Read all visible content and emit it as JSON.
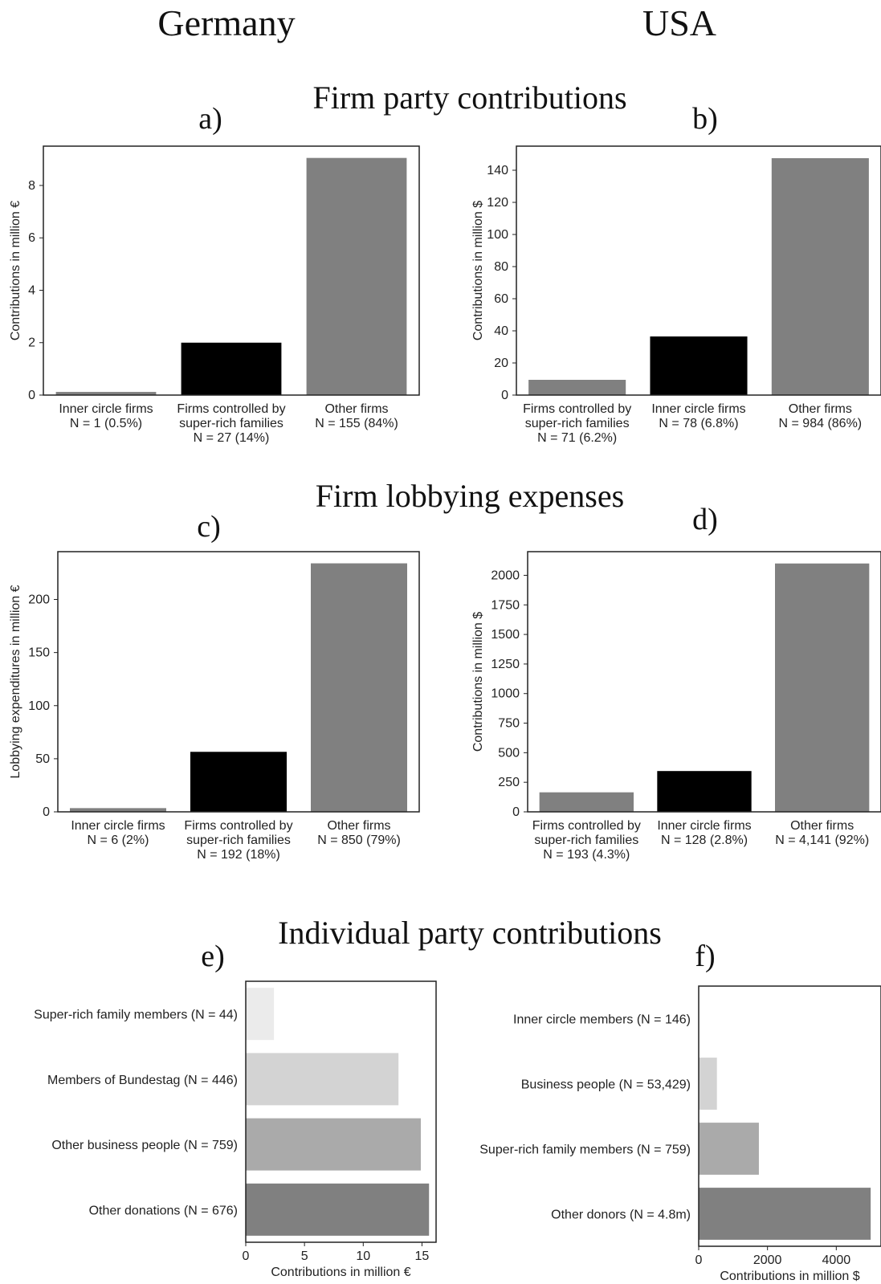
{
  "headers": {
    "germany": "Germany",
    "usa": "USA",
    "section_firm_contributions": "Firm party contributions",
    "section_lobbying": "Firm lobbying expenses",
    "section_individual": "Individual party contributions"
  },
  "colors": {
    "black": "#000000",
    "dark_gray": "#808080",
    "mid_gray": "#aaaaaa",
    "light_gray": "#d3d3d3",
    "very_light_gray": "#ebebeb"
  },
  "chart_data": [
    {
      "id": "a",
      "panel_label": "a)",
      "type": "bar",
      "orientation": "vertical",
      "ylabel": "Contributions in million €",
      "ylim": [
        0,
        9.5
      ],
      "yticks": [
        0,
        2,
        4,
        6,
        8
      ],
      "categories": [
        [
          "Inner circle firms",
          "N = 1 (0.5%)"
        ],
        [
          "Firms controlled by",
          "super-rich families",
          "N = 27 (14%)"
        ],
        [
          "Other firms",
          "N = 155 (84%)"
        ]
      ],
      "values": [
        0.12,
        2.0,
        9.05
      ],
      "colors": [
        "#808080",
        "#000000",
        "#808080"
      ]
    },
    {
      "id": "b",
      "panel_label": "b)",
      "type": "bar",
      "orientation": "vertical",
      "ylabel": "Contributions in million $",
      "ylim": [
        0,
        155
      ],
      "yticks": [
        0,
        20,
        40,
        60,
        80,
        100,
        120,
        140
      ],
      "categories": [
        [
          "Firms controlled by",
          "super-rich families",
          "N = 71 (6.2%)"
        ],
        [
          "Inner circle firms",
          "N = 78 (6.8%)"
        ],
        [
          "Other firms",
          "N = 984 (86%)"
        ]
      ],
      "values": [
        9.5,
        36.5,
        147.5
      ],
      "colors": [
        "#808080",
        "#000000",
        "#808080"
      ]
    },
    {
      "id": "c",
      "panel_label": "c)",
      "type": "bar",
      "orientation": "vertical",
      "ylabel": "Lobbying expenditures in million €",
      "ylim": [
        0,
        245
      ],
      "yticks": [
        0,
        50,
        100,
        150,
        200
      ],
      "categories": [
        [
          "Inner circle firms",
          "N = 6 (2%)"
        ],
        [
          "Firms controlled by",
          "super-rich families",
          "N = 192 (18%)"
        ],
        [
          "Other firms",
          "N = 850 (79%)"
        ]
      ],
      "values": [
        3.5,
        56.5,
        234
      ],
      "colors": [
        "#808080",
        "#000000",
        "#808080"
      ]
    },
    {
      "id": "d",
      "panel_label": "d)",
      "type": "bar",
      "orientation": "vertical",
      "ylabel": "Contributions in million $",
      "ylim": [
        0,
        2200
      ],
      "yticks": [
        0,
        250,
        500,
        750,
        1000,
        1250,
        1500,
        1750,
        2000
      ],
      "categories": [
        [
          "Firms controlled by",
          "super-rich families",
          "N = 193 (4.3%)"
        ],
        [
          "Inner circle firms",
          "N = 128 (2.8%)"
        ],
        [
          "Other firms",
          "N = 4,141 (92%)"
        ]
      ],
      "values": [
        165,
        345,
        2100
      ],
      "colors": [
        "#808080",
        "#000000",
        "#808080"
      ]
    },
    {
      "id": "e",
      "panel_label": "e)",
      "type": "bar",
      "orientation": "horizontal",
      "xlabel": "Contributions in million €",
      "xlim": [
        0,
        16.2
      ],
      "xticks": [
        0,
        5,
        10,
        15
      ],
      "categories": [
        "Super-rich family members (N = 44)",
        "Members of Bundestag (N = 446)",
        "Other business people (N = 759)",
        "Other donations (N = 676)"
      ],
      "values": [
        2.4,
        13.0,
        14.9,
        15.6
      ],
      "colors": [
        "#ebebeb",
        "#d3d3d3",
        "#aaaaaa",
        "#808080"
      ]
    },
    {
      "id": "f",
      "panel_label": "f)",
      "type": "bar",
      "orientation": "horizontal",
      "xlabel": "Contributions in million $",
      "xlim": [
        0,
        5300
      ],
      "xticks": [
        0,
        2000,
        4000
      ],
      "categories": [
        "Inner circle members (N = 146)",
        "Business people (N = 53,429)",
        "Super-rich family members (N = 759)",
        "Other donors (N = 4.8m)"
      ],
      "values": [
        5,
        530,
        1750,
        5000
      ],
      "colors": [
        "#ebebeb",
        "#d3d3d3",
        "#aaaaaa",
        "#808080"
      ]
    }
  ]
}
